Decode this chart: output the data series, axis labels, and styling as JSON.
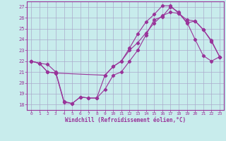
{
  "xlabel": "Windchill (Refroidissement éolien,°C)",
  "bg_color": "#c8ecec",
  "line_color": "#993399",
  "grid_color": "#aaaacc",
  "xlim": [
    -0.5,
    23.5
  ],
  "ylim": [
    17.5,
    27.5
  ],
  "xticks": [
    0,
    1,
    2,
    3,
    4,
    5,
    6,
    7,
    8,
    9,
    10,
    11,
    12,
    13,
    14,
    15,
    16,
    17,
    18,
    19,
    20,
    21,
    22,
    23
  ],
  "yticks": [
    18,
    19,
    20,
    21,
    22,
    23,
    24,
    25,
    26,
    27
  ],
  "series1_x": [
    0,
    1,
    2,
    3,
    4,
    5,
    6,
    7,
    8,
    9,
    10,
    11,
    12,
    13,
    14,
    15,
    16,
    17,
    18,
    19,
    20,
    21,
    22,
    23
  ],
  "series1_y": [
    22,
    21.8,
    21.7,
    21.0,
    18.3,
    18.1,
    18.7,
    18.6,
    18.6,
    19.4,
    20.7,
    21.0,
    22.0,
    23.0,
    24.4,
    25.8,
    26.1,
    27.0,
    26.5,
    25.5,
    25.7,
    24.9,
    23.9,
    22.4
  ],
  "series2_x": [
    0,
    1,
    2,
    3,
    4,
    5,
    6,
    7,
    8,
    9,
    10,
    11,
    12,
    13,
    14,
    15,
    16,
    17,
    18,
    19,
    20,
    21,
    22,
    23
  ],
  "series2_y": [
    22,
    21.8,
    21.0,
    20.9,
    18.2,
    18.1,
    18.7,
    18.6,
    18.6,
    20.7,
    21.5,
    22.0,
    23.2,
    24.5,
    25.6,
    26.3,
    27.1,
    27.1,
    26.4,
    25.6,
    24.0,
    22.5,
    22.0,
    22.4
  ],
  "series3_x": [
    0,
    1,
    2,
    3,
    9,
    10,
    11,
    12,
    13,
    14,
    15,
    16,
    17,
    18,
    19,
    20,
    21,
    22,
    23
  ],
  "series3_y": [
    22,
    21.8,
    21.0,
    20.9,
    20.7,
    21.5,
    22.0,
    23.0,
    23.7,
    24.6,
    25.5,
    26.2,
    26.5,
    26.4,
    25.8,
    25.7,
    24.9,
    23.8,
    22.4
  ]
}
